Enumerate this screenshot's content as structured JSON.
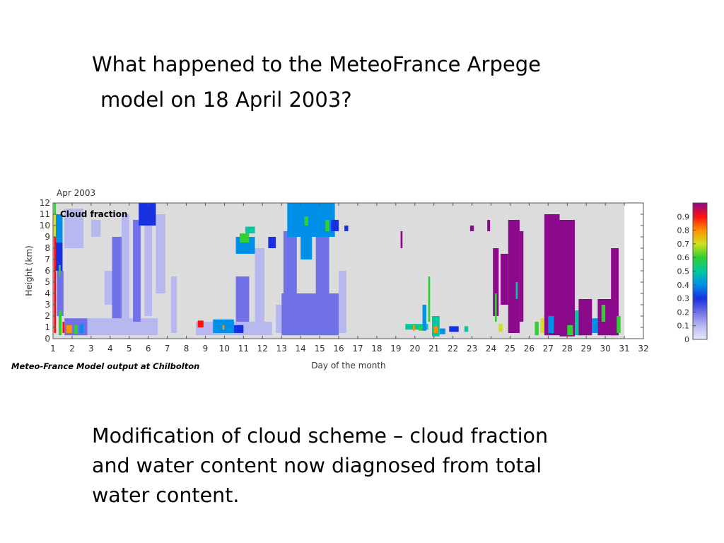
{
  "slide": {
    "title_lines": [
      "What happened to the MeteoFrance Arpege",
      "model on 18 April 2003?"
    ],
    "body_lines": [
      "Modification of cloud scheme – cloud fraction",
      "and water content now diagnosed from total",
      "water content."
    ]
  },
  "chart_data": {
    "type": "heatmap",
    "title": "Apr 2003",
    "panel_label": "Cloud fraction",
    "xlabel": "Day of the month",
    "ylabel": "Height (km)",
    "caption": "Meteo-France Model output at Chilbolton",
    "xlim": [
      1,
      32
    ],
    "ylim": [
      0,
      12
    ],
    "x_ticks": [
      1,
      2,
      3,
      4,
      5,
      6,
      7,
      8,
      9,
      10,
      11,
      12,
      13,
      14,
      15,
      16,
      17,
      18,
      19,
      20,
      21,
      22,
      23,
      24,
      25,
      26,
      27,
      28,
      29,
      30,
      31,
      32
    ],
    "y_ticks": [
      0,
      1,
      2,
      3,
      4,
      5,
      6,
      7,
      8,
      9,
      10,
      11,
      12
    ],
    "missing_data_after_day": 31,
    "colorbar": {
      "min": 0,
      "max": 1,
      "tick_labels": [
        "0",
        "0.1",
        "0.2",
        "0.3",
        "0.4",
        "0.5",
        "0.6",
        "0.7",
        "0.8",
        "0.9"
      ],
      "colors": [
        "#e8e8f8",
        "#b8b8f0",
        "#7070e8",
        "#1830e0",
        "#0090e8",
        "#00c8a0",
        "#30d030",
        "#d0e020",
        "#ff9000",
        "#ff1010",
        "#8b0a8b"
      ]
    },
    "background_color": "#dcdcdc",
    "cells": [
      {
        "x0": 1.05,
        "x1": 1.15,
        "y0": 9,
        "y1": 11,
        "v": 0.7
      },
      {
        "x0": 1.05,
        "x1": 1.15,
        "y0": 11,
        "y1": 12,
        "v": 0.6
      },
      {
        "x0": 1.05,
        "x1": 1.15,
        "y0": 0.5,
        "y1": 9,
        "v": 0.9
      },
      {
        "x0": 1.15,
        "x1": 1.5,
        "y0": 8.5,
        "y1": 11,
        "v": 0.35
      },
      {
        "x0": 1.15,
        "x1": 1.5,
        "y0": 6,
        "y1": 8.5,
        "v": 0.25
      },
      {
        "x0": 1.2,
        "x1": 1.55,
        "y0": 2,
        "y1": 6,
        "v": 0.15
      },
      {
        "x0": 1.3,
        "x1": 1.4,
        "y0": 5.5,
        "y1": 6.5,
        "v": 0.6
      },
      {
        "x0": 1.3,
        "x1": 1.45,
        "y0": 0.3,
        "y1": 2.5,
        "v": 0.55
      },
      {
        "x0": 1.5,
        "x1": 1.6,
        "y0": 0.5,
        "y1": 1.5,
        "v": 0.9
      },
      {
        "x0": 1.6,
        "x1": 2.8,
        "y0": 0.3,
        "y1": 1.8,
        "v": 0.2
      },
      {
        "x0": 1.7,
        "x1": 2.0,
        "y0": 0.5,
        "y1": 1.2,
        "v": 0.8
      },
      {
        "x0": 2.1,
        "x1": 2.3,
        "y0": 0.4,
        "y1": 1.2,
        "v": 0.6
      },
      {
        "x0": 2.4,
        "x1": 2.6,
        "y0": 0.5,
        "y1": 1.3,
        "v": 0.4
      },
      {
        "x0": 2.8,
        "x1": 6.5,
        "y0": 0.3,
        "y1": 1.8,
        "v": 0.1
      },
      {
        "x0": 1.6,
        "x1": 2.6,
        "y0": 8,
        "y1": 11.5,
        "v": 0.08
      },
      {
        "x0": 3.0,
        "x1": 3.5,
        "y0": 9,
        "y1": 10.5,
        "v": 0.12
      },
      {
        "x0": 3.7,
        "x1": 4.1,
        "y0": 3,
        "y1": 6,
        "v": 0.12
      },
      {
        "x0": 4.1,
        "x1": 4.6,
        "y0": 1.8,
        "y1": 9,
        "v": 0.15
      },
      {
        "x0": 4.6,
        "x1": 5.0,
        "y0": 1.5,
        "y1": 11,
        "v": 0.12
      },
      {
        "x0": 5.2,
        "x1": 5.6,
        "y0": 1.5,
        "y1": 10.5,
        "v": 0.15
      },
      {
        "x0": 5.5,
        "x1": 6.4,
        "y0": 10,
        "y1": 12,
        "v": 0.3
      },
      {
        "x0": 5.8,
        "x1": 6.2,
        "y0": 2,
        "y1": 10,
        "v": 0.12
      },
      {
        "x0": 6.4,
        "x1": 6.9,
        "y0": 4,
        "y1": 11,
        "v": 0.1
      },
      {
        "x0": 7.2,
        "x1": 7.5,
        "y0": 0.5,
        "y1": 5.5,
        "v": 0.08
      },
      {
        "x0": 8.5,
        "x1": 12.5,
        "y0": 0.3,
        "y1": 1.5,
        "v": 0.12
      },
      {
        "x0": 8.6,
        "x1": 8.9,
        "y0": 1,
        "y1": 1.6,
        "v": 0.9
      },
      {
        "x0": 9.4,
        "x1": 10.5,
        "y0": 0.5,
        "y1": 1.7,
        "v": 0.4
      },
      {
        "x0": 9.9,
        "x1": 10.0,
        "y0": 0.8,
        "y1": 1.2,
        "v": 0.8
      },
      {
        "x0": 10.5,
        "x1": 11.0,
        "y0": 0.5,
        "y1": 1.2,
        "v": 0.3
      },
      {
        "x0": 10.6,
        "x1": 11.3,
        "y0": 1.5,
        "y1": 5.5,
        "v": 0.2
      },
      {
        "x0": 10.6,
        "x1": 11.6,
        "y0": 7.5,
        "y1": 9,
        "v": 0.35
      },
      {
        "x0": 10.8,
        "x1": 11.3,
        "y0": 8.5,
        "y1": 9.3,
        "v": 0.6
      },
      {
        "x0": 11.1,
        "x1": 11.6,
        "y0": 9.3,
        "y1": 9.9,
        "v": 0.45
      },
      {
        "x0": 11.6,
        "x1": 12.1,
        "y0": 0.5,
        "y1": 8,
        "v": 0.12
      },
      {
        "x0": 12.3,
        "x1": 12.7,
        "y0": 8,
        "y1": 9,
        "v": 0.3
      },
      {
        "x0": 12.7,
        "x1": 13.0,
        "y0": 0.5,
        "y1": 3,
        "v": 0.1
      },
      {
        "x0": 13.0,
        "x1": 16.0,
        "y0": 0.3,
        "y1": 4,
        "v": 0.15
      },
      {
        "x0": 13.1,
        "x1": 13.8,
        "y0": 4,
        "y1": 9.5,
        "v": 0.2
      },
      {
        "x0": 13.3,
        "x1": 15.8,
        "y0": 9,
        "y1": 12,
        "v": 0.35
      },
      {
        "x0": 14.0,
        "x1": 14.6,
        "y0": 7,
        "y1": 10.5,
        "v": 0.4
      },
      {
        "x0": 14.2,
        "x1": 14.4,
        "y0": 10,
        "y1": 10.8,
        "v": 0.6
      },
      {
        "x0": 15.3,
        "x1": 15.5,
        "y0": 9.5,
        "y1": 10.5,
        "v": 0.55
      },
      {
        "x0": 14.8,
        "x1": 15.5,
        "y0": 4,
        "y1": 9,
        "v": 0.15
      },
      {
        "x0": 15.6,
        "x1": 16.0,
        "y0": 9.5,
        "y1": 10.5,
        "v": 0.3
      },
      {
        "x0": 16.0,
        "x1": 16.4,
        "y0": 0.5,
        "y1": 6,
        "v": 0.08
      },
      {
        "x0": 16.3,
        "x1": 16.5,
        "y0": 9.5,
        "y1": 10,
        "v": 0.3
      },
      {
        "x0": 19.5,
        "x1": 20.7,
        "y0": 0.8,
        "y1": 1.3,
        "v": 0.45
      },
      {
        "x0": 20.2,
        "x1": 20.4,
        "y0": 0.7,
        "y1": 1.1,
        "v": 0.6
      },
      {
        "x0": 19.9,
        "x1": 20.0,
        "y0": 0.7,
        "y1": 1.2,
        "v": 0.8
      },
      {
        "x0": 20.4,
        "x1": 20.6,
        "y0": 0.7,
        "y1": 3,
        "v": 0.4
      },
      {
        "x0": 20.7,
        "x1": 20.8,
        "y0": 1.5,
        "y1": 5.5,
        "v": 0.6
      },
      {
        "x0": 20.9,
        "x1": 21.3,
        "y0": 0.2,
        "y1": 2,
        "v": 0.5
      },
      {
        "x0": 21.0,
        "x1": 21.2,
        "y0": 0.5,
        "y1": 1.1,
        "v": 0.8
      },
      {
        "x0": 21.3,
        "x1": 21.6,
        "y0": 0.4,
        "y1": 0.9,
        "v": 0.4
      },
      {
        "x0": 21.8,
        "x1": 22.3,
        "y0": 0.6,
        "y1": 1.1,
        "v": 0.3
      },
      {
        "x0": 22.6,
        "x1": 22.8,
        "y0": 0.6,
        "y1": 1.1,
        "v": 0.5
      },
      {
        "x0": 19.25,
        "x1": 19.35,
        "y0": 8,
        "y1": 9.5,
        "v": 0.95
      },
      {
        "x0": 22.9,
        "x1": 23.1,
        "y0": 9.5,
        "y1": 10,
        "v": 0.95
      },
      {
        "x0": 23.8,
        "x1": 23.95,
        "y0": 9.5,
        "y1": 10.5,
        "v": 0.95
      },
      {
        "x0": 24.1,
        "x1": 24.4,
        "y0": 2,
        "y1": 8,
        "v": 0.95
      },
      {
        "x0": 24.2,
        "x1": 24.3,
        "y0": 1.5,
        "y1": 4,
        "v": 0.55
      },
      {
        "x0": 24.4,
        "x1": 24.6,
        "y0": 0.6,
        "y1": 1.3,
        "v": 0.7
      },
      {
        "x0": 24.5,
        "x1": 24.9,
        "y0": 3,
        "y1": 7.5,
        "v": 0.95
      },
      {
        "x0": 24.9,
        "x1": 25.5,
        "y0": 0.5,
        "y1": 10.5,
        "v": 0.95
      },
      {
        "x0": 25.5,
        "x1": 25.7,
        "y0": 1.5,
        "y1": 9.5,
        "v": 0.95
      },
      {
        "x0": 25.3,
        "x1": 25.4,
        "y0": 3.5,
        "y1": 5,
        "v": 0.5
      },
      {
        "x0": 26.3,
        "x1": 26.5,
        "y0": 0.3,
        "y1": 1.5,
        "v": 0.6
      },
      {
        "x0": 26.6,
        "x1": 26.8,
        "y0": 0.5,
        "y1": 1.8,
        "v": 0.7
      },
      {
        "x0": 26.8,
        "x1": 27.6,
        "y0": 0.3,
        "y1": 11,
        "v": 0.95
      },
      {
        "x0": 27.0,
        "x1": 27.3,
        "y0": 0.5,
        "y1": 2,
        "v": 0.4
      },
      {
        "x0": 27.6,
        "x1": 28.4,
        "y0": 0.2,
        "y1": 10.5,
        "v": 0.95
      },
      {
        "x0": 28.0,
        "x1": 28.3,
        "y0": 0.3,
        "y1": 1.2,
        "v": 0.6
      },
      {
        "x0": 28.4,
        "x1": 28.9,
        "y0": 0.3,
        "y1": 2.5,
        "v": 0.5
      },
      {
        "x0": 28.6,
        "x1": 29.3,
        "y0": 0.3,
        "y1": 3.5,
        "v": 0.95
      },
      {
        "x0": 29.3,
        "x1": 29.6,
        "y0": 0.5,
        "y1": 1.8,
        "v": 0.4
      },
      {
        "x0": 29.6,
        "x1": 30.5,
        "y0": 0.3,
        "y1": 3.5,
        "v": 0.95
      },
      {
        "x0": 29.8,
        "x1": 30.0,
        "y0": 1.5,
        "y1": 3,
        "v": 0.6
      },
      {
        "x0": 30.3,
        "x1": 30.7,
        "y0": 0.3,
        "y1": 8,
        "v": 0.95
      },
      {
        "x0": 30.6,
        "x1": 30.8,
        "y0": 0.5,
        "y1": 2,
        "v": 0.55
      }
    ]
  }
}
